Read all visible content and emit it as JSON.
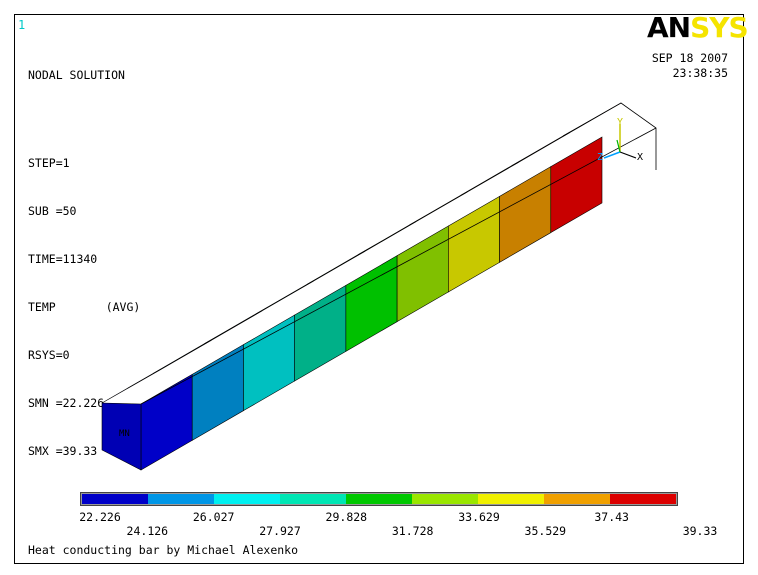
{
  "window_number": "1",
  "solution_title": "NODAL SOLUTION",
  "info_lines": [
    "STEP=1",
    "SUB =50",
    "TIME=11340"
  ],
  "temp_label": "TEMP",
  "temp_avg": "(AVG)",
  "info_lines2": [
    "RSYS=0",
    "SMN =22.226",
    "SMX =39.33"
  ],
  "logo": {
    "part1": "AN",
    "part2": "SYS"
  },
  "date": "SEP 18 2007",
  "time": "23:38:35",
  "mn_marker": "MN",
  "triad": {
    "x": "X",
    "y": "Y",
    "z": "Z"
  },
  "legend": {
    "colors": [
      "#0000c8",
      "#0096e6",
      "#00f0f0",
      "#00e6b4",
      "#00c800",
      "#9ae600",
      "#f0f000",
      "#f0a000",
      "#dc0000"
    ],
    "labels_top": [
      "22.226",
      "26.027",
      "29.828",
      "33.629",
      "37.43"
    ],
    "labels_bottom": [
      "24.126",
      "27.927",
      "31.728",
      "35.529",
      "39.33"
    ]
  },
  "bar_segments": {
    "front": [
      "#0000c8",
      "#0080c0",
      "#00c0c0",
      "#00b088",
      "#00c000",
      "#80c000",
      "#c8c800",
      "#c88000",
      "#c80000"
    ],
    "top": [
      "#0000b4",
      "#0078b4",
      "#00b4b4",
      "#00b47e",
      "#00b400",
      "#78b400",
      "#b4b400",
      "#b47800",
      "#b40000"
    ],
    "end_face": "#0000b4"
  },
  "caption": "Heat conducting bar by Michael Alexenko"
}
